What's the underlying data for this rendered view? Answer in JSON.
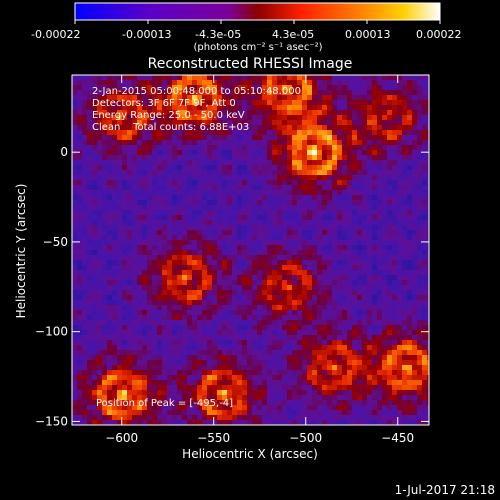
{
  "colorbar": {
    "ticks": [
      "-0.00022",
      "-0.00013",
      "-4.3e-05",
      "4.3e-05",
      "0.00013",
      "0.00022"
    ],
    "units_label": "(photons cm⁻² s⁻¹ asec⁻²)",
    "range": [
      -0.00022,
      0.00022
    ],
    "colormap": [
      "#0000ff",
      "#5a00c8",
      "#7a00a0",
      "#8b0000",
      "#ff2000",
      "#ff8000",
      "#ffd000",
      "#ffffff"
    ]
  },
  "chart_data": {
    "type": "heatmap",
    "title": "Reconstructed RHESSI Image",
    "xlabel": "Heliocentric X (arcsec)",
    "ylabel": "Heliocentric Y (arcsec)",
    "xlim": [
      -627,
      -433
    ],
    "ylim": [
      -152,
      43
    ],
    "xticks": [
      -600,
      -550,
      -500,
      -450
    ],
    "yticks": [
      0,
      -50,
      -100,
      -150
    ],
    "annotations": [
      "2-Jan-2015 05:00:48.000 to 05:10:48.000",
      "Detectors: 3F 6F 7F 9F, Att 0",
      "Energy Range: 25.0 - 50.0 keV",
      "Clean    Total counts: 6.88E+03",
      "Position of Peak = [-495,-4]"
    ],
    "peak_position": [
      -495,
      -4
    ],
    "bright_sources": [
      {
        "x": -560,
        "y": 30,
        "level": 0.9
      },
      {
        "x": -510,
        "y": 35,
        "level": 0.85
      },
      {
        "x": -495,
        "y": 0,
        "level": 1.0
      },
      {
        "x": -600,
        "y": 20,
        "level": 0.7
      },
      {
        "x": -565,
        "y": -70,
        "level": 0.7
      },
      {
        "x": -510,
        "y": -75,
        "level": 0.65
      },
      {
        "x": -485,
        "y": -120,
        "level": 0.7
      },
      {
        "x": -600,
        "y": -135,
        "level": 0.9
      },
      {
        "x": -545,
        "y": -135,
        "level": 0.8
      },
      {
        "x": -445,
        "y": -120,
        "level": 0.85
      },
      {
        "x": -455,
        "y": 20,
        "level": 0.6
      }
    ]
  },
  "footer": {
    "timestamp": "1-Jul-2017 21:18"
  }
}
